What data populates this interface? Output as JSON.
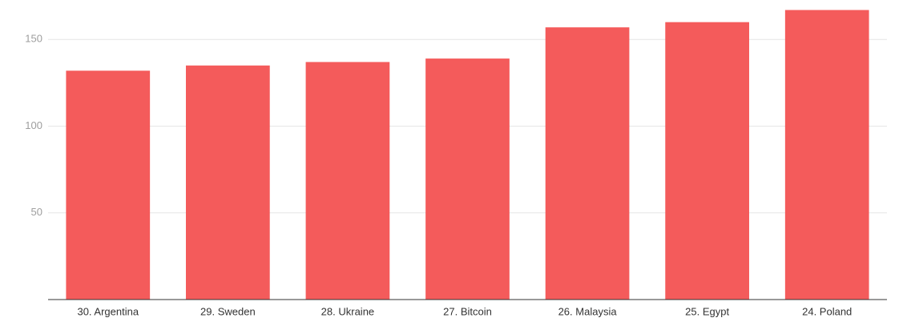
{
  "chart_data": {
    "type": "bar",
    "categories": [
      "30. Argentina",
      "29. Sweden",
      "28. Ukraine",
      "27. Bitcoin",
      "26. Malaysia",
      "25. Egypt",
      "24. Poland"
    ],
    "values": [
      132,
      135,
      137,
      139,
      157,
      160,
      167
    ],
    "color": "#f45b5b",
    "ylim": [
      0,
      170
    ],
    "yticks": [
      50,
      100,
      150
    ],
    "grid": true
  }
}
